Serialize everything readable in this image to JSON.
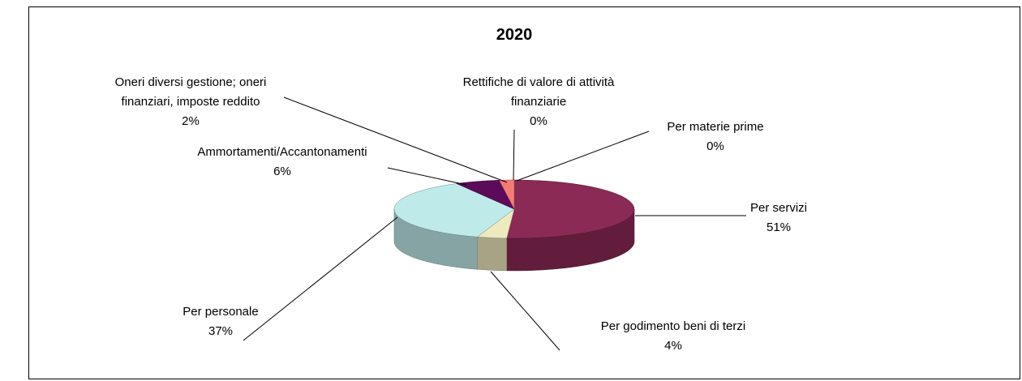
{
  "chart_data": {
    "type": "pie3d",
    "title": "2020",
    "categories": [
      "Per materie prime",
      "Per servizi",
      "Per godimento beni di terzi",
      "Per personale",
      "Ammortamenti/Accantonamenti",
      "Oneri diversi gestione; oneri finanziari, imposte reddito",
      "Rettifiche di valore di attività finanziarie"
    ],
    "values": [
      0,
      51,
      4,
      37,
      6,
      2,
      0
    ],
    "value_labels": [
      "0%",
      "51%",
      "4%",
      "37%",
      "6%",
      "2%",
      "0%"
    ],
    "colors": [
      "#9999ff",
      "#8b2a55",
      "#eeeac0",
      "#bfeaea",
      "#5c0a5a",
      "#f47c74",
      "#ffcc99"
    ]
  }
}
